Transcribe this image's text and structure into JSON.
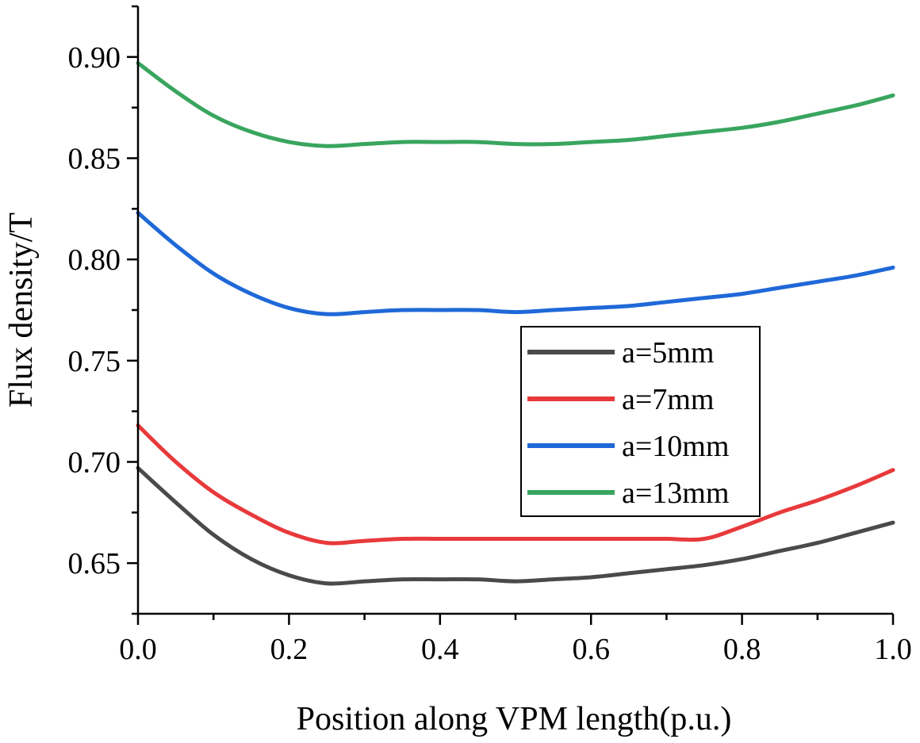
{
  "chart_data": {
    "type": "line",
    "title": "",
    "xlabel": "Position along VPM length(p.u.)",
    "ylabel": "Flux density/T",
    "xlim": [
      0.0,
      1.0
    ],
    "ylim": [
      0.625,
      0.925
    ],
    "x_ticks": [
      {
        "value": 0.0,
        "label": "0.0"
      },
      {
        "value": 0.2,
        "label": "0.2"
      },
      {
        "value": 0.4,
        "label": "0.4"
      },
      {
        "value": 0.6,
        "label": "0.6"
      },
      {
        "value": 0.8,
        "label": "0.8"
      },
      {
        "value": 1.0,
        "label": "1.0"
      }
    ],
    "y_ticks": [
      {
        "value": 0.65,
        "label": "0.65"
      },
      {
        "value": 0.7,
        "label": "0.70"
      },
      {
        "value": 0.75,
        "label": "0.75"
      },
      {
        "value": 0.8,
        "label": "0.80"
      },
      {
        "value": 0.85,
        "label": "0.85"
      },
      {
        "value": 0.9,
        "label": "0.90"
      }
    ],
    "grid": false,
    "legend_position": "right",
    "series": [
      {
        "name": "a=5mm",
        "color": "#4a4a4a",
        "x": [
          0.0,
          0.05,
          0.1,
          0.15,
          0.2,
          0.25,
          0.3,
          0.35,
          0.4,
          0.45,
          0.5,
          0.55,
          0.6,
          0.65,
          0.7,
          0.75,
          0.8,
          0.85,
          0.9,
          0.95,
          1.0
        ],
        "y": [
          0.697,
          0.68,
          0.664,
          0.652,
          0.644,
          0.64,
          0.641,
          0.642,
          0.642,
          0.642,
          0.641,
          0.642,
          0.643,
          0.645,
          0.647,
          0.649,
          0.652,
          0.656,
          0.66,
          0.665,
          0.67
        ]
      },
      {
        "name": "a=7mm",
        "color": "#e8393b",
        "x": [
          0.0,
          0.05,
          0.1,
          0.15,
          0.2,
          0.25,
          0.3,
          0.35,
          0.4,
          0.45,
          0.5,
          0.55,
          0.6,
          0.65,
          0.7,
          0.75,
          0.8,
          0.85,
          0.9,
          0.95,
          1.0
        ],
        "y": [
          0.718,
          0.7,
          0.685,
          0.674,
          0.665,
          0.66,
          0.661,
          0.662,
          0.662,
          0.662,
          0.662,
          0.662,
          0.662,
          0.662,
          0.662,
          0.662,
          0.668,
          0.675,
          0.681,
          0.688,
          0.696
        ]
      },
      {
        "name": "a=10mm",
        "color": "#1f68d8",
        "x": [
          0.0,
          0.05,
          0.1,
          0.15,
          0.2,
          0.25,
          0.3,
          0.35,
          0.4,
          0.45,
          0.5,
          0.55,
          0.6,
          0.65,
          0.7,
          0.75,
          0.8,
          0.85,
          0.9,
          0.95,
          1.0
        ],
        "y": [
          0.823,
          0.807,
          0.793,
          0.783,
          0.776,
          0.773,
          0.774,
          0.775,
          0.775,
          0.775,
          0.774,
          0.775,
          0.776,
          0.777,
          0.779,
          0.781,
          0.783,
          0.786,
          0.789,
          0.792,
          0.796
        ]
      },
      {
        "name": "a=13mm",
        "color": "#39a55e",
        "x": [
          0.0,
          0.05,
          0.1,
          0.15,
          0.2,
          0.25,
          0.3,
          0.35,
          0.4,
          0.45,
          0.5,
          0.55,
          0.6,
          0.65,
          0.7,
          0.75,
          0.8,
          0.85,
          0.9,
          0.95,
          1.0
        ],
        "y": [
          0.897,
          0.883,
          0.871,
          0.863,
          0.858,
          0.856,
          0.857,
          0.858,
          0.858,
          0.858,
          0.857,
          0.857,
          0.858,
          0.859,
          0.861,
          0.863,
          0.865,
          0.868,
          0.872,
          0.876,
          0.881
        ]
      }
    ]
  }
}
